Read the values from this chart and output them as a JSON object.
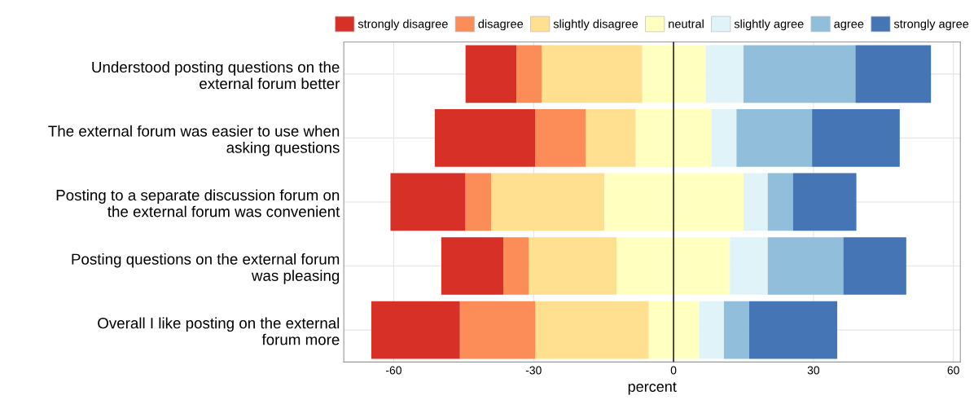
{
  "chart_data": {
    "type": "bar",
    "orientation": "horizontal",
    "xlabel": "percent",
    "categories": [
      "Understood posting questions on the\nexternal forum better",
      "The external forum was easier to use when\nasking questions",
      "Posting to a separate discussion forum on\nthe external forum was convenient",
      "Posting questions on the external forum\nwas pleasing",
      "Overall I like posting on the external\nforum more"
    ],
    "series": [
      {
        "name": "strongly disagree",
        "color": "#d73027",
        "base": [
          -44.6,
          -51.2,
          -60.7,
          -49.8,
          -64.8
        ],
        "values": [
          10.9,
          21.6,
          16.1,
          13.3,
          19.0
        ]
      },
      {
        "name": "disagree",
        "color": "#fc8d59",
        "base": [
          -33.7,
          -29.6,
          -44.6,
          -36.5,
          -45.8
        ],
        "values": [
          5.4,
          10.8,
          5.5,
          5.5,
          16.2
        ]
      },
      {
        "name": "slightly disagree",
        "color": "#fee090",
        "base": [
          -28.3,
          -18.8,
          -39.1,
          -31.0,
          -29.6
        ],
        "values": [
          21.6,
          10.7,
          24.3,
          18.8,
          24.3
        ]
      },
      {
        "name": "neutral",
        "color": "#ffffbf",
        "base": [
          -6.7,
          -8.1,
          -14.8,
          -12.2,
          -5.3
        ],
        "values": [
          13.6,
          16.2,
          29.8,
          24.3,
          10.8
        ]
      },
      {
        "name": "slightly agree",
        "color": "#e0f3f8",
        "base": [
          6.9,
          8.1,
          15.0,
          12.1,
          5.5
        ],
        "values": [
          8.1,
          5.4,
          5.2,
          8.1,
          5.3
        ]
      },
      {
        "name": "agree",
        "color": "#91bfdb",
        "base": [
          15.0,
          13.5,
          20.2,
          20.2,
          10.8
        ],
        "values": [
          24.0,
          16.2,
          5.4,
          16.2,
          5.4
        ]
      },
      {
        "name": "strongly agree",
        "color": "#4575b4",
        "base": [
          39.0,
          29.7,
          25.6,
          36.4,
          16.2
        ],
        "values": [
          16.2,
          18.8,
          13.6,
          13.5,
          18.9
        ]
      }
    ],
    "xlim": [
      -70.7,
      61.5
    ],
    "xticks": [
      {
        "value": -60,
        "label": "-60"
      },
      {
        "value": -30,
        "label": "-30"
      },
      0,
      30,
      60
    ],
    "ref_lines": [
      {
        "axis": "x",
        "value": 0,
        "color": "#000000"
      }
    ],
    "grid": true,
    "legend": "top"
  }
}
